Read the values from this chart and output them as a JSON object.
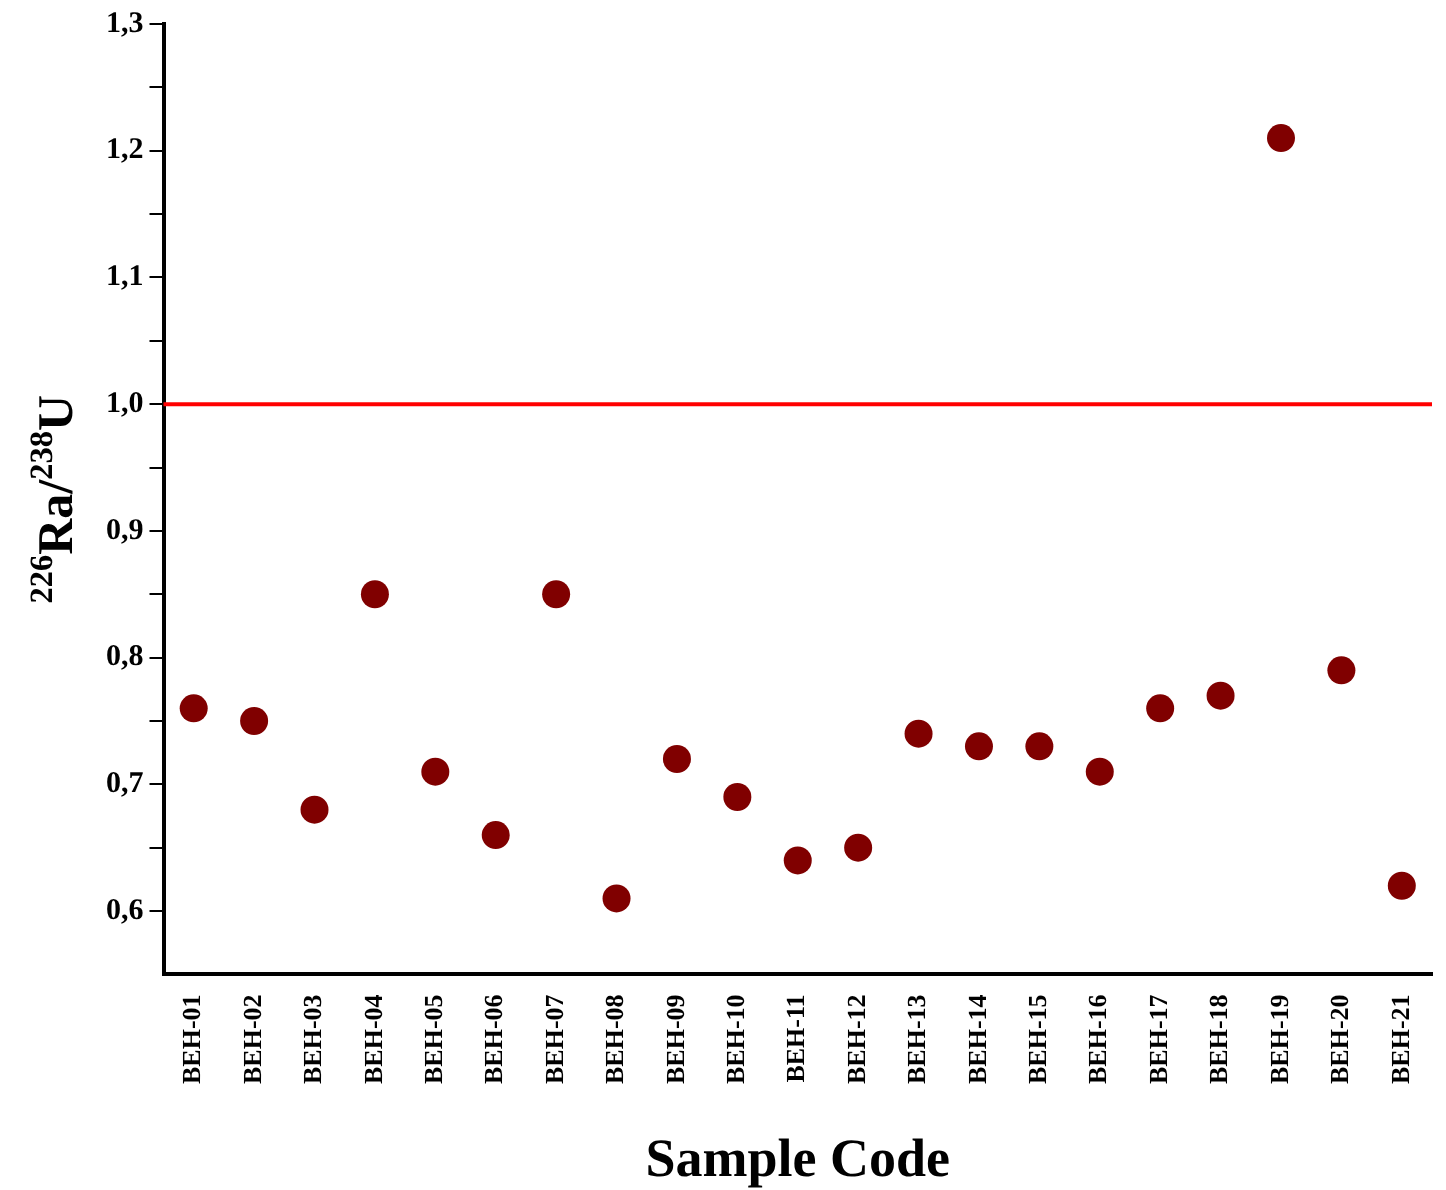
{
  "chart_data": {
    "type": "scatter",
    "xlabel": "Sample Code",
    "ylabel": "$^{226}$Ra/$^{238}$U",
    "categories": [
      "BEH-01",
      "BEH-02",
      "BEH-03",
      "BEH-04",
      "BEH-05",
      "BEH-06",
      "BEH-07",
      "BEH-08",
      "BEH-09",
      "BEH-10",
      "BEH-11",
      "BEH-12",
      "BEH-13",
      "BEH-14",
      "BEH-15",
      "BEH-16",
      "BEH-17",
      "BEH-18",
      "BEH-19",
      "BEH-20",
      "BEH-21"
    ],
    "values": [
      0.76,
      0.75,
      0.68,
      0.85,
      0.71,
      0.66,
      0.85,
      0.61,
      0.72,
      0.69,
      0.64,
      0.65,
      0.74,
      0.73,
      0.73,
      0.71,
      0.76,
      0.77,
      1.21,
      0.79,
      0.62
    ],
    "color": "#800000",
    "marker": "circle",
    "grid": false,
    "legend": false,
    "ylim": [
      0.55,
      1.3
    ],
    "yticks": [
      {
        "value": 0.6,
        "label": "0,6"
      },
      {
        "value": 0.65,
        "label": null
      },
      {
        "value": 0.7,
        "label": "0,7"
      },
      {
        "value": 0.75,
        "label": null
      },
      {
        "value": 0.8,
        "label": "0,8"
      },
      {
        "value": 0.85,
        "label": null
      },
      {
        "value": 0.9,
        "label": "0,9"
      },
      {
        "value": 0.95,
        "label": null
      },
      {
        "value": 1.0,
        "label": "1,0"
      },
      {
        "value": 1.05,
        "label": null
      },
      {
        "value": 1.1,
        "label": "1,1"
      },
      {
        "value": 1.15,
        "label": null
      },
      {
        "value": 1.2,
        "label": "1,2"
      },
      {
        "value": 1.25,
        "label": null
      },
      {
        "value": 1.3,
        "label": "1,3"
      }
    ],
    "ref_lines": [
      {
        "axis": "y",
        "value": 1.0,
        "color": "#ff0000",
        "line_style": "solid"
      }
    ]
  }
}
